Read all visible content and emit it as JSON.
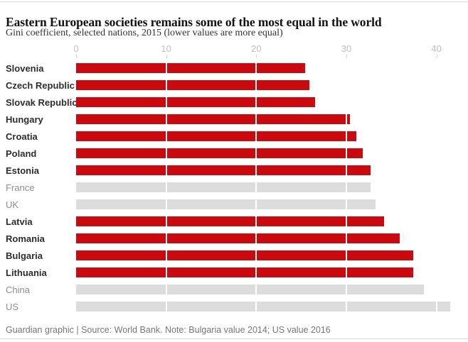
{
  "header": {
    "title": "Eastern European societies remains some of the most equal in the world",
    "subtitle": "Gini coefficient, selected nations, 2015 (lower values are more equal)"
  },
  "chart_data": {
    "type": "bar",
    "orientation": "horizontal",
    "title": "Eastern European societies remains some of the most equal in the world",
    "subtitle": "Gini coefficient, selected nations, 2015 (lower values are more equal)",
    "xlabel": "",
    "ylabel": "",
    "xlim": [
      0,
      42
    ],
    "xticks": [
      0,
      10,
      20,
      30,
      40
    ],
    "grid": "vertical white lines over bars at each x tick",
    "legend": "none",
    "categories": [
      "Slovenia",
      "Czech Republic",
      "Slovak Republic",
      "Hungary",
      "Croatia",
      "Poland",
      "Estonia",
      "France",
      "UK",
      "Latvia",
      "Romania",
      "Bulgaria",
      "Lithuania",
      "China",
      "US"
    ],
    "values": [
      25.4,
      25.9,
      26.5,
      30.4,
      31.1,
      31.8,
      32.7,
      32.7,
      33.2,
      34.2,
      35.9,
      37.4,
      37.4,
      38.6,
      41.5
    ],
    "rows": [
      {
        "label": "Slovenia",
        "value": 25.4,
        "group": "eastern-european"
      },
      {
        "label": "Czech Republic",
        "value": 25.9,
        "group": "eastern-european"
      },
      {
        "label": "Slovak Republic",
        "value": 26.5,
        "group": "eastern-european"
      },
      {
        "label": "Hungary",
        "value": 30.4,
        "group": "eastern-european"
      },
      {
        "label": "Croatia",
        "value": 31.1,
        "group": "eastern-european"
      },
      {
        "label": "Poland",
        "value": 31.8,
        "group": "eastern-european"
      },
      {
        "label": "Estonia",
        "value": 32.7,
        "group": "eastern-european"
      },
      {
        "label": "France",
        "value": 32.7,
        "group": "comparison"
      },
      {
        "label": "UK",
        "value": 33.2,
        "group": "comparison"
      },
      {
        "label": "Latvia",
        "value": 34.2,
        "group": "eastern-european"
      },
      {
        "label": "Romania",
        "value": 35.9,
        "group": "eastern-european"
      },
      {
        "label": "Bulgaria",
        "value": 37.4,
        "group": "eastern-european"
      },
      {
        "label": "Lithuania",
        "value": 37.4,
        "group": "eastern-european"
      },
      {
        "label": "China",
        "value": 38.6,
        "group": "comparison"
      },
      {
        "label": "US",
        "value": 41.5,
        "group": "comparison"
      }
    ]
  },
  "colors": {
    "bar_highlight": "#cb0a10",
    "bar_comparison": "#dcdcdc",
    "title_text": "#121212",
    "subtitle_text": "#333333",
    "axis_tick_label": "#bfbfbf",
    "label_bold": "#2d2d2d",
    "label_muted": "#8e8e8e",
    "footer_text": "#767676",
    "rule": "#dcdcdc"
  },
  "footer": {
    "credit": "Guardian graphic | Source: World Bank. Note: Bulgaria value 2014; US value 2016"
  }
}
